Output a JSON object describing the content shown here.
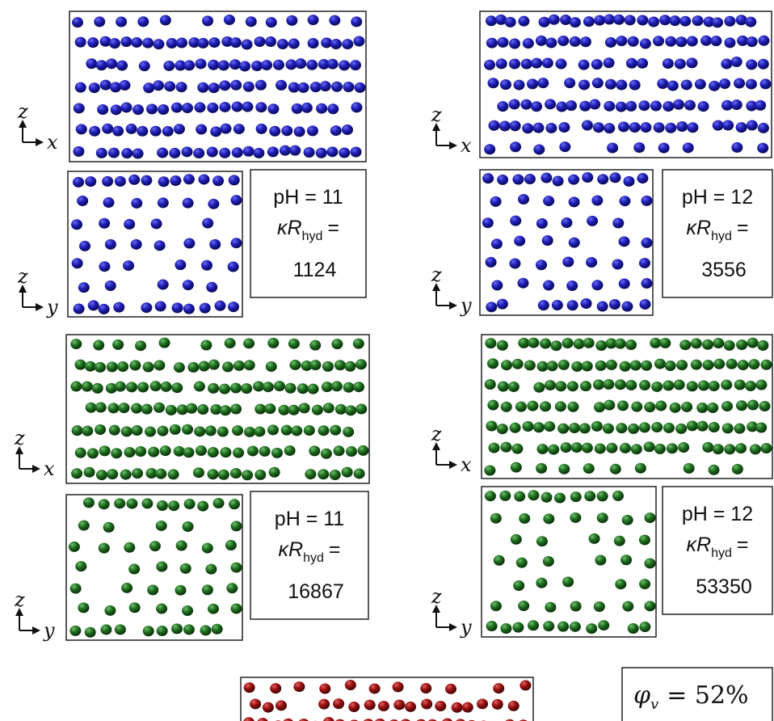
{
  "axes": {
    "z": "z",
    "x": "x",
    "y": "y"
  },
  "panels": [
    {
      "ph": "pH = 11",
      "kappa": "κR",
      "kappa_sub": "hyd",
      "equals": "=",
      "value": "1124"
    },
    {
      "ph": "pH = 12",
      "kappa": "κR",
      "kappa_sub": "hyd",
      "equals": "=",
      "value": "3556"
    },
    {
      "ph": "pH = 11",
      "kappa": "κR",
      "kappa_sub": "hyd",
      "equals": "=",
      "value": "16867"
    },
    {
      "ph": "pH = 12",
      "kappa": "κR",
      "kappa_sub": "hyd",
      "equals": "=",
      "value": "53350"
    }
  ],
  "fraction": {
    "symbol": "φ",
    "sub": "v",
    "rest": "= 52%"
  }
}
